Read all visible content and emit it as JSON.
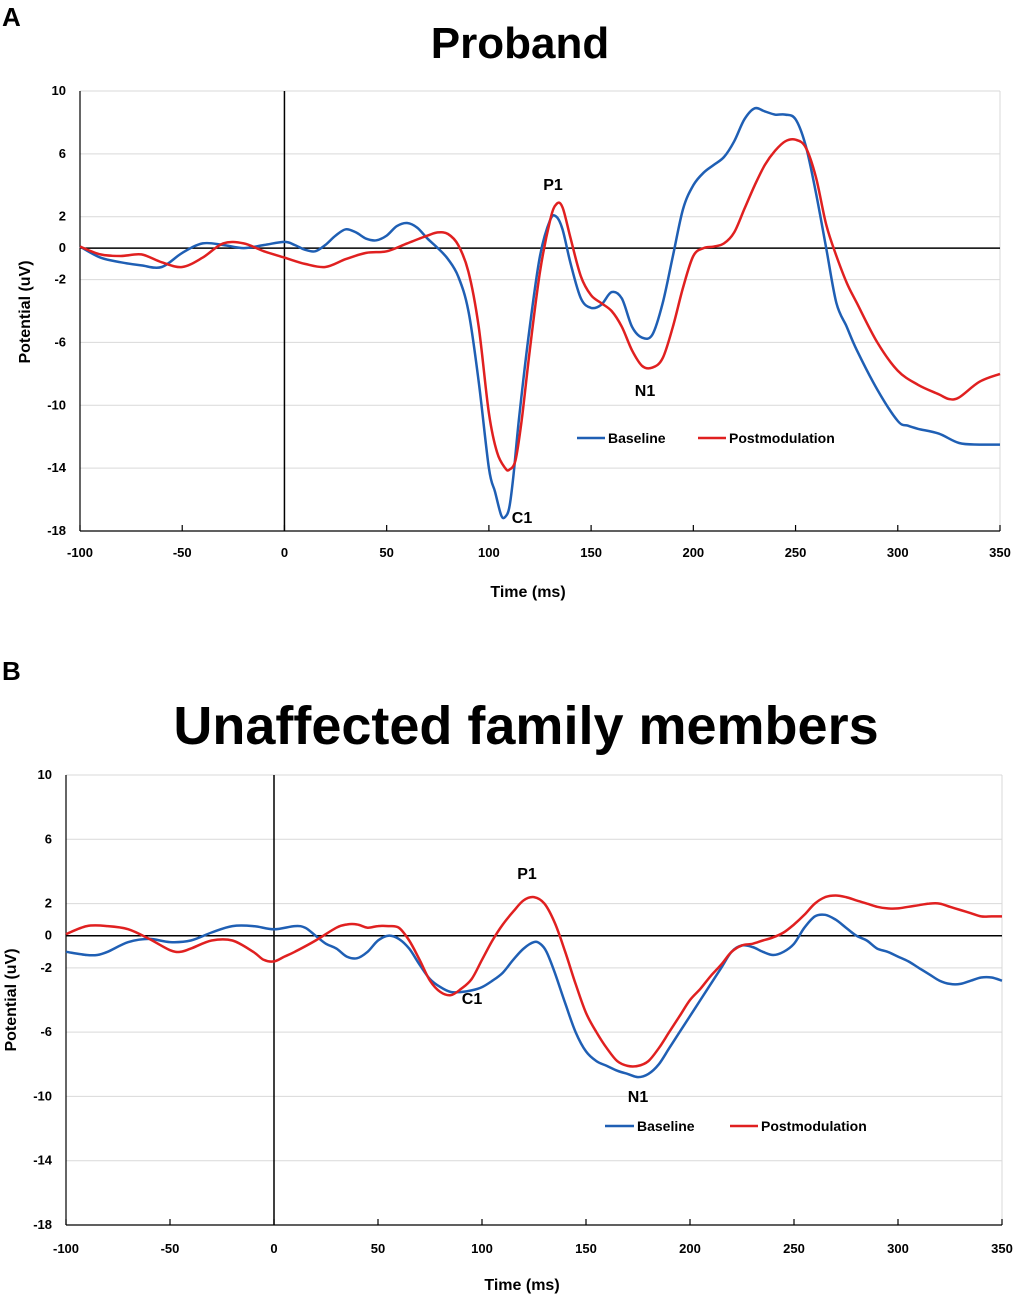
{
  "chart_data": [
    {
      "type": "line",
      "panel": "A",
      "title": "Proband",
      "xlabel": "Time (ms)",
      "ylabel": "Potential (uV)",
      "xlim": [
        -100,
        350
      ],
      "ylim": [
        -18,
        10
      ],
      "xticks": [
        -100,
        -50,
        0,
        50,
        100,
        150,
        200,
        250,
        300,
        350
      ],
      "yticks": [
        10,
        6,
        2,
        0,
        -2,
        -6,
        -10,
        -14,
        -18
      ],
      "grid": "horizontal",
      "legend_position": "lower-right",
      "annotations": [
        {
          "text": "P1",
          "x": 133,
          "y": 3.8
        },
        {
          "text": "C1",
          "x": 118,
          "y": -17.3
        },
        {
          "text": "N1",
          "x": 180,
          "y": -9.5
        }
      ],
      "series": [
        {
          "name": "Baseline",
          "color": "#1f5fb4",
          "x": [
            -100,
            -90,
            -80,
            -70,
            -60,
            -50,
            -40,
            -30,
            -20,
            -10,
            0,
            5,
            10,
            15,
            20,
            25,
            30,
            35,
            40,
            45,
            50,
            55,
            60,
            65,
            70,
            75,
            80,
            85,
            90,
            95,
            100,
            103,
            106,
            108,
            110,
            112,
            115,
            120,
            125,
            130,
            133,
            136,
            140,
            145,
            150,
            155,
            160,
            165,
            170,
            175,
            180,
            185,
            190,
            195,
            200,
            205,
            210,
            215,
            220,
            225,
            230,
            235,
            240,
            245,
            250,
            255,
            260,
            265,
            270,
            275,
            280,
            290,
            300,
            305,
            310,
            320,
            330,
            340,
            350
          ],
          "y": [
            0.1,
            -0.6,
            -0.9,
            -1.1,
            -1.2,
            -0.3,
            0.3,
            0.2,
            0.0,
            0.2,
            0.4,
            0.2,
            -0.1,
            -0.2,
            0.2,
            0.8,
            1.2,
            1.0,
            0.6,
            0.5,
            0.8,
            1.4,
            1.6,
            1.3,
            0.6,
            0.0,
            -0.7,
            -1.8,
            -4.0,
            -8.5,
            -14.0,
            -15.5,
            -17.0,
            -17.1,
            -16.5,
            -14.5,
            -10.5,
            -5.0,
            -0.5,
            1.8,
            2.0,
            1.2,
            -1.0,
            -3.2,
            -3.8,
            -3.6,
            -2.8,
            -3.2,
            -5.0,
            -5.7,
            -5.5,
            -3.5,
            -0.5,
            2.5,
            4.0,
            4.8,
            5.3,
            5.8,
            6.8,
            8.2,
            8.9,
            8.7,
            8.5,
            8.5,
            8.2,
            6.5,
            3.5,
            0.0,
            -3.5,
            -5.0,
            -6.5,
            -9.0,
            -11.0,
            -11.3,
            -11.5,
            -11.8,
            -12.4,
            -12.5,
            -12.5
          ]
        },
        {
          "name": "Postmodulation",
          "color": "#e02020",
          "x": [
            -100,
            -90,
            -80,
            -70,
            -60,
            -50,
            -40,
            -30,
            -20,
            -10,
            0,
            10,
            20,
            30,
            40,
            50,
            60,
            70,
            75,
            80,
            85,
            90,
            95,
            100,
            104,
            108,
            110,
            113,
            116,
            120,
            125,
            130,
            133,
            136,
            140,
            145,
            150,
            155,
            160,
            165,
            170,
            175,
            180,
            185,
            190,
            195,
            200,
            205,
            210,
            215,
            220,
            225,
            230,
            235,
            240,
            245,
            250,
            255,
            260,
            265,
            270,
            275,
            280,
            290,
            300,
            310,
            320,
            325,
            330,
            340,
            350
          ],
          "y": [
            0.1,
            -0.4,
            -0.5,
            -0.4,
            -0.9,
            -1.2,
            -0.6,
            0.3,
            0.3,
            -0.2,
            -0.6,
            -1.0,
            -1.2,
            -0.7,
            -0.3,
            -0.2,
            0.3,
            0.8,
            1.0,
            0.9,
            0.2,
            -1.5,
            -5.0,
            -10.5,
            -13.0,
            -14.0,
            -14.1,
            -13.5,
            -11.0,
            -6.5,
            -1.5,
            1.8,
            2.8,
            2.6,
            0.6,
            -1.8,
            -3.0,
            -3.5,
            -4.0,
            -5.0,
            -6.5,
            -7.5,
            -7.6,
            -7.0,
            -5.0,
            -2.5,
            -0.5,
            0.0,
            0.1,
            0.3,
            1.0,
            2.5,
            4.0,
            5.3,
            6.2,
            6.8,
            6.9,
            6.4,
            4.5,
            1.5,
            -0.5,
            -2.2,
            -3.5,
            -6.0,
            -7.8,
            -8.7,
            -9.3,
            -9.6,
            -9.5,
            -8.5,
            -8.0
          ]
        }
      ]
    },
    {
      "type": "line",
      "panel": "B",
      "title": "Unaffected family members",
      "xlabel": "Time (ms)",
      "ylabel": "Potential (uV)",
      "xlim": [
        -100,
        350
      ],
      "ylim": [
        -18,
        10
      ],
      "xticks": [
        -100,
        -50,
        0,
        50,
        100,
        150,
        200,
        250,
        300,
        350
      ],
      "yticks": [
        10,
        6,
        2,
        0,
        -2,
        -6,
        -10,
        -14,
        -18
      ],
      "grid": "horizontal",
      "legend_position": "lower-right",
      "annotations": [
        {
          "text": "P1",
          "x": 123,
          "y": 3.1
        },
        {
          "text": "C1",
          "x": 92,
          "y": -4.9
        },
        {
          "text": "N1",
          "x": 177,
          "y": -10.2
        }
      ],
      "series": [
        {
          "name": "Baseline",
          "color": "#1f5fb4",
          "x": [
            -100,
            -90,
            -85,
            -80,
            -70,
            -60,
            -50,
            -40,
            -30,
            -20,
            -10,
            0,
            10,
            15,
            20,
            25,
            30,
            35,
            40,
            45,
            50,
            55,
            60,
            65,
            70,
            75,
            80,
            85,
            90,
            95,
            100,
            105,
            110,
            115,
            120,
            125,
            128,
            131,
            135,
            140,
            145,
            150,
            155,
            160,
            165,
            170,
            175,
            180,
            185,
            190,
            195,
            200,
            205,
            210,
            215,
            220,
            225,
            230,
            235,
            240,
            245,
            250,
            255,
            260,
            265,
            270,
            275,
            280,
            285,
            290,
            295,
            300,
            305,
            310,
            315,
            320,
            325,
            330,
            335,
            340,
            345,
            350
          ],
          "y": [
            -1.0,
            -1.2,
            -1.2,
            -1.0,
            -0.4,
            -0.2,
            -0.4,
            -0.3,
            0.2,
            0.6,
            0.6,
            0.4,
            0.6,
            0.5,
            0.0,
            -0.5,
            -0.8,
            -1.3,
            -1.4,
            -1.0,
            -0.3,
            0.0,
            -0.2,
            -0.8,
            -1.8,
            -2.7,
            -3.2,
            -3.5,
            -3.5,
            -3.4,
            -3.2,
            -2.8,
            -2.3,
            -1.5,
            -0.8,
            -0.4,
            -0.5,
            -1.0,
            -2.3,
            -4.2,
            -6.0,
            -7.2,
            -7.8,
            -8.1,
            -8.4,
            -8.6,
            -8.8,
            -8.6,
            -8.0,
            -7.0,
            -6.0,
            -5.0,
            -4.0,
            -3.0,
            -2.0,
            -1.0,
            -0.6,
            -0.7,
            -1.0,
            -1.2,
            -1.0,
            -0.5,
            0.5,
            1.2,
            1.3,
            1.0,
            0.5,
            0.0,
            -0.3,
            -0.8,
            -1.0,
            -1.3,
            -1.6,
            -2.0,
            -2.4,
            -2.8,
            -3.0,
            -3.0,
            -2.8,
            -2.6,
            -2.6,
            -2.8
          ]
        },
        {
          "name": "Postmodulation",
          "color": "#e02020",
          "x": [
            -100,
            -90,
            -80,
            -70,
            -60,
            -50,
            -45,
            -40,
            -30,
            -20,
            -10,
            -5,
            0,
            5,
            10,
            20,
            30,
            35,
            40,
            45,
            50,
            55,
            60,
            65,
            70,
            75,
            80,
            85,
            90,
            95,
            100,
            105,
            110,
            115,
            120,
            125,
            130,
            135,
            140,
            145,
            150,
            155,
            160,
            165,
            170,
            175,
            180,
            185,
            190,
            195,
            200,
            205,
            210,
            215,
            220,
            225,
            230,
            235,
            240,
            245,
            250,
            255,
            260,
            265,
            270,
            275,
            280,
            285,
            290,
            295,
            300,
            305,
            310,
            315,
            320,
            325,
            330,
            335,
            340,
            345,
            350
          ],
          "y": [
            0.1,
            0.6,
            0.6,
            0.4,
            -0.2,
            -0.9,
            -1.0,
            -0.8,
            -0.3,
            -0.3,
            -1.0,
            -1.5,
            -1.6,
            -1.3,
            -1.0,
            -0.3,
            0.5,
            0.7,
            0.7,
            0.5,
            0.6,
            0.6,
            0.5,
            -0.3,
            -1.5,
            -2.8,
            -3.5,
            -3.7,
            -3.3,
            -2.7,
            -1.5,
            -0.3,
            0.7,
            1.5,
            2.2,
            2.4,
            2.0,
            0.8,
            -1.0,
            -3.0,
            -4.8,
            -6.0,
            -7.0,
            -7.8,
            -8.1,
            -8.1,
            -7.8,
            -7.0,
            -6.0,
            -5.0,
            -4.0,
            -3.3,
            -2.5,
            -1.8,
            -1.0,
            -0.6,
            -0.5,
            -0.3,
            -0.1,
            0.2,
            0.7,
            1.3,
            2.0,
            2.4,
            2.5,
            2.4,
            2.2,
            2.0,
            1.8,
            1.7,
            1.7,
            1.8,
            1.9,
            2.0,
            2.0,
            1.8,
            1.6,
            1.4,
            1.2,
            1.2,
            1.2
          ]
        }
      ]
    }
  ]
}
